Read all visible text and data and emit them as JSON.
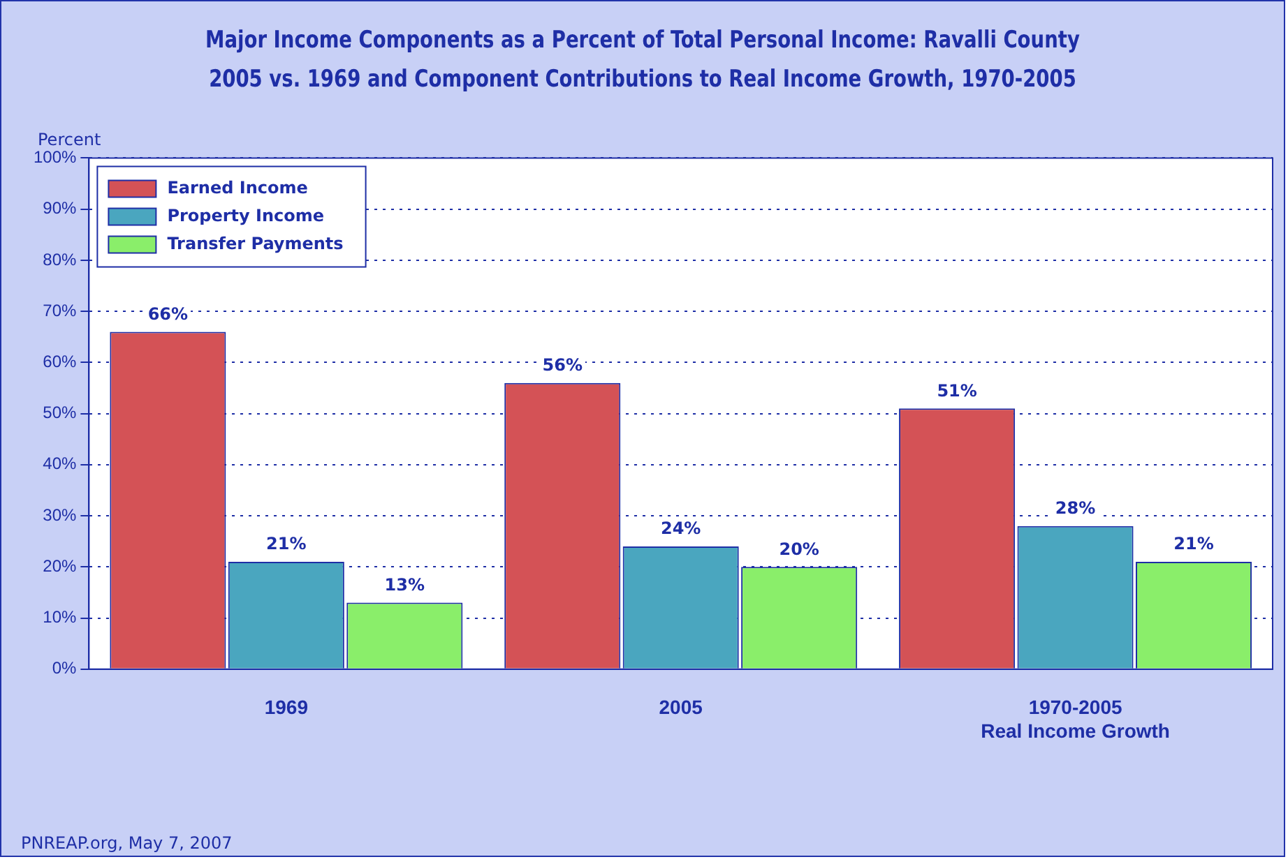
{
  "chart_data": {
    "type": "bar",
    "title": "Major Income Components as a Percent of Total Personal Income: Ravalli County\n2005 vs. 1969 and Component Contributions to Real Income Growth, 1970-2005",
    "ylabel": "Percent",
    "categories": [
      "1969",
      "2005",
      "1970-2005\nReal Income Growth"
    ],
    "series": [
      {
        "name": "Earned Income",
        "color": "#d45256",
        "values": [
          66,
          56,
          51
        ],
        "value_labels": [
          "66%",
          "56%",
          "51%"
        ]
      },
      {
        "name": "Property Income",
        "color": "#4aa6bf",
        "values": [
          21,
          24,
          28
        ],
        "value_labels": [
          "21%",
          "24%",
          "28%"
        ]
      },
      {
        "name": "Transfer Payments",
        "color": "#8aee6a",
        "values": [
          13,
          20,
          21
        ],
        "value_labels": [
          "13%",
          "20%",
          "21%"
        ]
      }
    ],
    "ylim": [
      0,
      100
    ],
    "yticks": [
      {
        "value": 0,
        "label": "0%"
      },
      {
        "value": 10,
        "label": "10%"
      },
      {
        "value": 20,
        "label": "20%"
      },
      {
        "value": 30,
        "label": "30%"
      },
      {
        "value": 40,
        "label": "40%"
      },
      {
        "value": 50,
        "label": "50%"
      },
      {
        "value": 60,
        "label": "60%"
      },
      {
        "value": 70,
        "label": "70%"
      },
      {
        "value": 80,
        "label": "80%"
      },
      {
        "value": 90,
        "label": "90%"
      },
      {
        "value": 100,
        "label": "100%"
      }
    ],
    "grid": "y",
    "legend": "top left",
    "annotations": [
      "PNREAP.org, May 7, 2007"
    ]
  }
}
